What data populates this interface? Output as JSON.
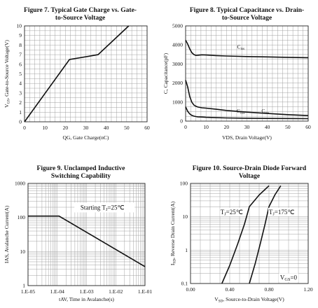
{
  "chart_data": [
    {
      "type": "line",
      "title_lines": [
        "Figure 7. Typical Gate Charge vs. Gate-",
        "to-Source Voltage"
      ],
      "xlabel": "QG, Gate Charge(nC)",
      "ylabel": "VGS, Gate-to-Source Voltage(V)",
      "xlim": [
        0,
        60
      ],
      "ylim": [
        0,
        10
      ],
      "xticks": [
        0,
        10,
        20,
        30,
        40,
        50,
        60
      ],
      "yticks": [
        0,
        1,
        2,
        3,
        4,
        5,
        6,
        7,
        8,
        9,
        10
      ],
      "grid": true,
      "series": [
        {
          "x": [
            0,
            22,
            36,
            51
          ],
          "y": [
            0,
            6.5,
            7.0,
            10
          ]
        }
      ]
    },
    {
      "type": "line",
      "title_lines": [
        "Figure 8. Typical Capacitance vs. Drain-",
        "to-Source Voltage"
      ],
      "xlabel": "VDS, Drain Voltage(V)",
      "ylabel": "C, Capacitance(pF)",
      "xlim": [
        0,
        60
      ],
      "ylim": [
        0,
        5000
      ],
      "xticks": [
        0,
        10,
        20,
        30,
        40,
        50,
        60
      ],
      "yticks": [
        0,
        1000,
        2000,
        3000,
        4000,
        5000
      ],
      "grid": true,
      "series": [
        {
          "name": "Ciss",
          "x": [
            0,
            1,
            2,
            3,
            4,
            5,
            6,
            8,
            10,
            15,
            20,
            30,
            40,
            50,
            60
          ],
          "y": [
            4250,
            4050,
            3800,
            3600,
            3500,
            3450,
            3460,
            3480,
            3470,
            3440,
            3420,
            3390,
            3370,
            3350,
            3330
          ]
        },
        {
          "name": "Coss",
          "x": [
            0,
            1,
            2,
            3,
            4,
            5,
            6,
            8,
            10,
            15,
            20,
            30,
            40,
            50,
            60
          ],
          "y": [
            2150,
            1800,
            1300,
            1000,
            850,
            780,
            740,
            700,
            680,
            620,
            560,
            470,
            400,
            340,
            290
          ]
        },
        {
          "name": "Crss",
          "x": [
            0,
            1,
            2,
            3,
            4,
            5,
            6,
            8,
            10,
            15,
            20,
            30,
            40,
            50,
            60
          ],
          "y": [
            750,
            520,
            380,
            300,
            260,
            240,
            225,
            215,
            200,
            180,
            165,
            150,
            140,
            135,
            130
          ]
        }
      ],
      "annotations": [
        {
          "text": "Ciss",
          "x": 27,
          "y": 3800
        },
        {
          "text": "Coss",
          "x": 27,
          "y": 450
        },
        {
          "text": "Crss",
          "x": 39,
          "y": 450
        }
      ]
    },
    {
      "type": "line",
      "title_lines": [
        "Figure 9. Unclamped Inductive",
        "Switching Capability"
      ],
      "xlabel": "tAV, Time in Avalanche(s)",
      "ylabel": "IAS, Avalanche Current(A)",
      "xscale": "log",
      "yscale": "log",
      "xlim": [
        1e-05,
        0.1
      ],
      "ylim": [
        1,
        1000
      ],
      "xticks": [
        "1.E-05",
        "1.E-04",
        "1.E-03",
        "1.E-02",
        "1.E-01"
      ],
      "yticks": [
        "1",
        "10",
        "100",
        "1000"
      ],
      "grid": true,
      "series": [
        {
          "x": [
            1e-05,
            0.000115,
            0.1
          ],
          "y": [
            110,
            110,
            3.6
          ]
        }
      ],
      "annotations": [
        {
          "text": "Starting TJ=25℃",
          "x": 0.0035,
          "y": 170
        }
      ]
    },
    {
      "type": "line",
      "title_lines": [
        "Figure 10. Source-Drain Diode Forward",
        "Voltage"
      ],
      "xlabel": "VSD, Source-to-Drain Voltage(V)",
      "ylabel": "ISD, Reverse Drain Current(A)",
      "yscale": "log",
      "xlim": [
        0,
        1.2
      ],
      "ylim": [
        0.1,
        100
      ],
      "xticks": [
        "0.00",
        "0.40",
        "0.80",
        "1.20"
      ],
      "yticks": [
        "0.1",
        "1",
        "10",
        "100"
      ],
      "grid": true,
      "series": [
        {
          "name": "TJ=25℃",
          "x": [
            0.32,
            0.4,
            0.48,
            0.55,
            0.6,
            0.7,
            0.8
          ],
          "y": [
            0.1,
            0.35,
            1.5,
            6,
            20,
            45,
            85
          ]
        },
        {
          "name": "TJ=175℃",
          "x": [
            0.6,
            0.66,
            0.71,
            0.76,
            0.8,
            0.86,
            0.92
          ],
          "y": [
            0.1,
            0.4,
            1.5,
            6,
            20,
            45,
            85
          ]
        }
      ],
      "annotations": [
        {
          "text": "TJ=25℃",
          "x": 0.42,
          "y": 12
        },
        {
          "text": "TJ=175℃",
          "x": 0.93,
          "y": 12
        },
        {
          "text": "VGS=0",
          "x": 1.0,
          "y": 0.13
        }
      ]
    }
  ]
}
